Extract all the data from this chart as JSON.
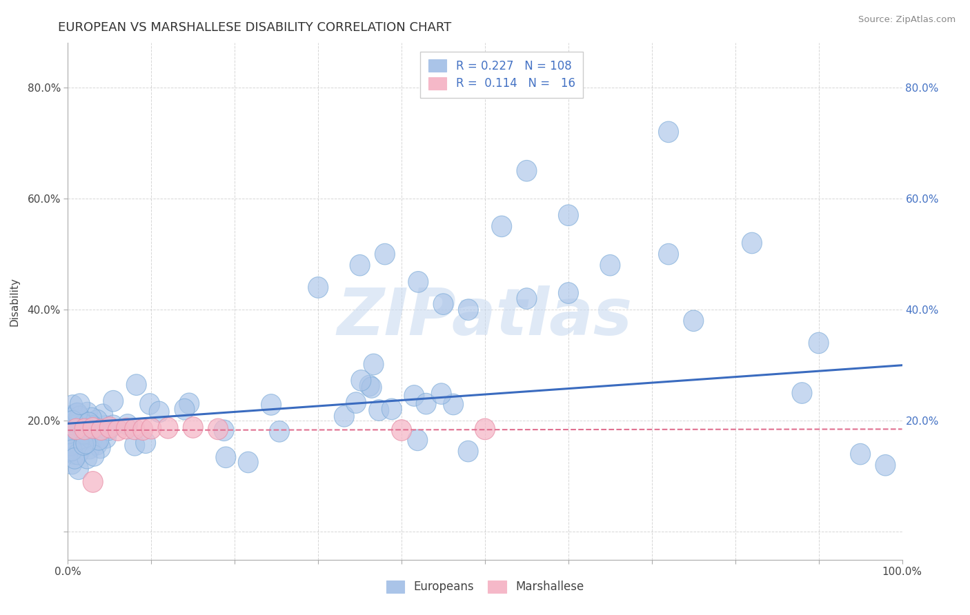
{
  "title": "EUROPEAN VS MARSHALLESE DISABILITY CORRELATION CHART",
  "source": "Source: ZipAtlas.com",
  "ylabel": "Disability",
  "xlim": [
    0.0,
    1.0
  ],
  "ylim": [
    -0.05,
    0.88
  ],
  "european_color": "#aac4e8",
  "european_edge_color": "#7aaad8",
  "marshallese_color": "#f5b8c8",
  "marshallese_edge_color": "#e890a8",
  "trend_european_color": "#3a6bbf",
  "trend_marshallese_color": "#e07090",
  "legend_european_R": "0.227",
  "legend_european_N": "108",
  "legend_marshallese_R": "0.114",
  "legend_marshallese_N": "16",
  "watermark_text": "ZIPatlas",
  "background_color": "#ffffff",
  "grid_color": "#cccccc",
  "title_fontsize": 13,
  "axis_fontsize": 11,
  "legend_fontsize": 12,
  "eu_trend_start_y": 0.195,
  "eu_trend_end_y": 0.3,
  "marsh_trend_start_y": 0.183,
  "marsh_trend_end_y": 0.185
}
